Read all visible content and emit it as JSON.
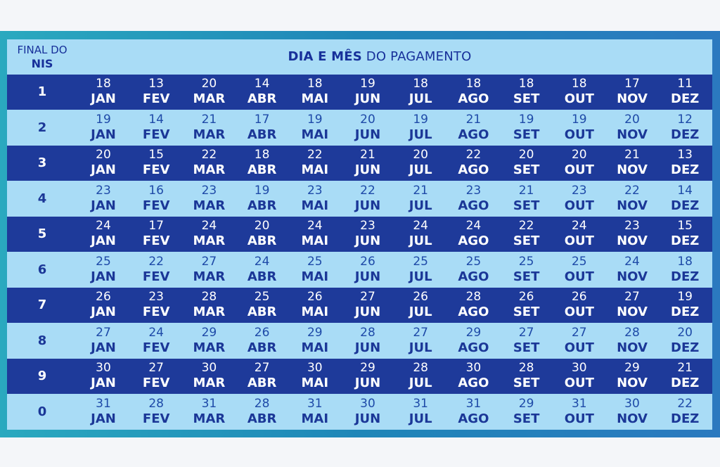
{
  "header": {
    "nis_label_line1": "FINAL DO",
    "nis_label_line2": "NIS",
    "title_bold": "DIA E MÊS",
    "title_rest": " DO PAGAMENTO"
  },
  "months": [
    "JAN",
    "FEV",
    "MAR",
    "ABR",
    "MAI",
    "JUN",
    "JUL",
    "AGO",
    "SET",
    "OUT",
    "NOV",
    "DEZ"
  ],
  "rows": [
    {
      "nis": "1",
      "days": [
        "18",
        "13",
        "20",
        "14",
        "18",
        "19",
        "18",
        "18",
        "18",
        "18",
        "17",
        "11"
      ]
    },
    {
      "nis": "2",
      "days": [
        "19",
        "14",
        "21",
        "17",
        "19",
        "20",
        "19",
        "21",
        "19",
        "19",
        "20",
        "12"
      ]
    },
    {
      "nis": "3",
      "days": [
        "20",
        "15",
        "22",
        "18",
        "22",
        "21",
        "20",
        "22",
        "20",
        "20",
        "21",
        "13"
      ]
    },
    {
      "nis": "4",
      "days": [
        "23",
        "16",
        "23",
        "19",
        "23",
        "22",
        "21",
        "23",
        "21",
        "23",
        "22",
        "14"
      ]
    },
    {
      "nis": "5",
      "days": [
        "24",
        "17",
        "24",
        "20",
        "24",
        "23",
        "24",
        "24",
        "22",
        "24",
        "23",
        "15"
      ]
    },
    {
      "nis": "6",
      "days": [
        "25",
        "22",
        "27",
        "24",
        "25",
        "26",
        "25",
        "25",
        "25",
        "25",
        "24",
        "18"
      ]
    },
    {
      "nis": "7",
      "days": [
        "26",
        "23",
        "28",
        "25",
        "26",
        "27",
        "26",
        "28",
        "26",
        "26",
        "27",
        "19"
      ]
    },
    {
      "nis": "8",
      "days": [
        "27",
        "24",
        "29",
        "26",
        "29",
        "28",
        "27",
        "29",
        "27",
        "27",
        "28",
        "20"
      ]
    },
    {
      "nis": "9",
      "days": [
        "30",
        "27",
        "30",
        "27",
        "30",
        "29",
        "28",
        "30",
        "28",
        "30",
        "29",
        "21"
      ]
    },
    {
      "nis": "0",
      "days": [
        "31",
        "28",
        "31",
        "28",
        "31",
        "30",
        "31",
        "31",
        "29",
        "31",
        "30",
        "22"
      ]
    }
  ],
  "colors": {
    "dark_row": "#1e3a9a",
    "light_row": "#a9dcf6",
    "frame": "#2b79bf"
  }
}
